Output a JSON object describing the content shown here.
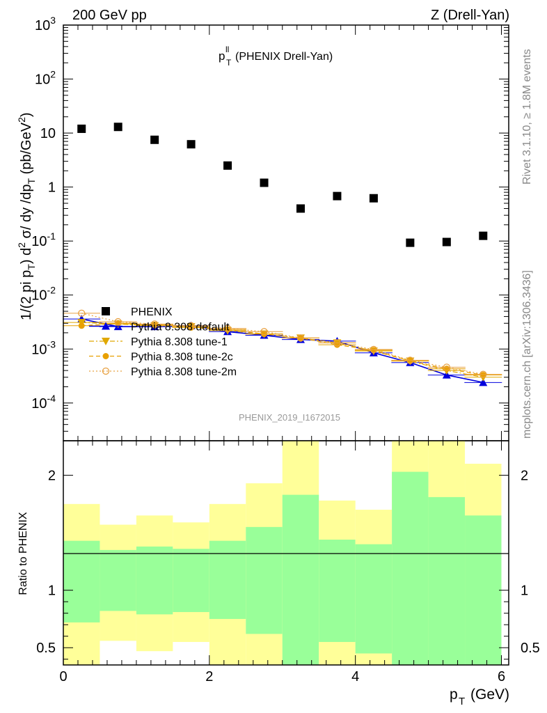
{
  "header": {
    "left": "200 GeV pp",
    "right": "Z (Drell-Yan)"
  },
  "side_text": {
    "rivet": "Rivet 3.1.10, ≥ 1.8M events",
    "mcplots": "mcplots.cern.ch [arXiv:1306.3436]"
  },
  "colors": {
    "data": "#000000",
    "default": "#0000dd",
    "tune1": "#e0a800",
    "tune2c": "#e8a000",
    "tune2m": "#e8a040",
    "band_inner": "#99ff99",
    "band_outer": "#ffff99"
  },
  "chart_data": [
    {
      "type": "scatter",
      "title": "p_T^ll (PHENIX Drell-Yan)",
      "title_main": "p",
      "title_sup": "ll",
      "title_sub": "T",
      "title_rest": "(PHENIX Drell-Yan)",
      "ylabel": "1/(2 pi p_T) d^2 σ/ dy /dp_T (pb/GeV^2)",
      "yscale": "log",
      "ylim": [
        2e-05,
        1000
      ],
      "xlim": [
        0,
        6.1
      ],
      "analysis_id": "PHENIX_2019_I1672015",
      "yticks": [
        {
          "value": 1000,
          "label_base": "10",
          "label_exp": "3"
        },
        {
          "value": 100,
          "label_base": "10",
          "label_exp": "2"
        },
        {
          "value": 10,
          "label_base": "10",
          "label_exp": ""
        },
        {
          "value": 1,
          "label_base": "1",
          "label_exp": ""
        },
        {
          "value": 0.1,
          "label_base": "10",
          "label_exp": "-1"
        },
        {
          "value": 0.01,
          "label_base": "10",
          "label_exp": "-2"
        },
        {
          "value": 0.001,
          "label_base": "10",
          "label_exp": "-3"
        },
        {
          "value": 0.0001,
          "label_base": "10",
          "label_exp": "-4"
        }
      ],
      "x": [
        0.25,
        0.75,
        1.25,
        1.75,
        2.25,
        2.75,
        3.25,
        3.75,
        4.25,
        4.75,
        5.25,
        5.75
      ],
      "series": [
        {
          "name": "PHENIX",
          "key": "data",
          "marker": "square",
          "values": [
            12,
            13,
            7.5,
            6.2,
            2.5,
            1.2,
            0.4,
            0.68,
            0.62,
            0.093,
            0.096,
            0.125
          ]
        },
        {
          "name": "Pythia 8.308 default",
          "key": "default",
          "marker": "triangle-up",
          "line": "solid",
          "values": [
            0.0036,
            0.0026,
            0.0026,
            0.0027,
            0.0021,
            0.0018,
            0.0015,
            0.0014,
            0.00085,
            0.00056,
            0.00033,
            0.00024
          ]
        },
        {
          "name": "Pythia 8.308 tune-1",
          "key": "tune1",
          "marker": "triangle-down",
          "line": "dashdot",
          "values": [
            0.0031,
            0.0029,
            0.0027,
            0.0026,
            0.0022,
            0.0019,
            0.0016,
            0.0013,
            0.00092,
            0.0006,
            0.0004,
            0.0003
          ]
        },
        {
          "name": "Pythia 8.308 tune-2c",
          "key": "tune2c",
          "marker": "circle",
          "line": "dashed",
          "values": [
            0.0027,
            0.003,
            0.0028,
            0.0025,
            0.0023,
            0.0019,
            0.0016,
            0.0012,
            0.00095,
            0.0006,
            0.00043,
            0.00033
          ]
        },
        {
          "name": "Pythia 8.308 tune-2m",
          "key": "tune2m",
          "marker": "open-circle",
          "line": "dotted",
          "values": [
            0.0046,
            0.0032,
            0.0029,
            0.0027,
            0.0024,
            0.0021,
            0.0016,
            0.0013,
            0.00098,
            0.00062,
            0.00046,
            0.00034
          ]
        }
      ],
      "legend_placement": "lower-left"
    },
    {
      "type": "area",
      "ylabel": "Ratio to PHENIX",
      "xlabel": "p_T (GeV)",
      "xlabel_main": "p",
      "xlabel_sub": "T",
      "xlabel_rest": "(GeV)",
      "xlim": [
        0,
        6.1
      ],
      "ylim": [
        0.35,
        2.3
      ],
      "reference_line": 1,
      "xticks": [
        0,
        2,
        4,
        6
      ],
      "yticks": [
        0.5,
        1,
        2
      ],
      "bins": [
        [
          0,
          0.5
        ],
        [
          0.5,
          1
        ],
        [
          1,
          1.5
        ],
        [
          1.5,
          2
        ],
        [
          2,
          2.5
        ],
        [
          2.5,
          3
        ],
        [
          3,
          3.5
        ],
        [
          3.5,
          4
        ],
        [
          4,
          4.5
        ],
        [
          4.5,
          5
        ],
        [
          5,
          5.5
        ],
        [
          5.5,
          6
        ]
      ],
      "inner_band": {
        "low": [
          0.72,
          0.82,
          0.79,
          0.81,
          0.75,
          0.62,
          0.35,
          0.55,
          0.45,
          0.35,
          0.35,
          0.35
        ],
        "high": [
          1.43,
          1.35,
          1.38,
          1.36,
          1.43,
          1.55,
          1.83,
          1.44,
          1.4,
          2.03,
          1.81,
          1.65
        ]
      },
      "outer_band": {
        "low": [
          0.35,
          0.56,
          0.47,
          0.55,
          0.35,
          0.35,
          0.35,
          0.35,
          0.35,
          0.35,
          0.35,
          0.42
        ],
        "high": [
          1.75,
          1.57,
          1.65,
          1.59,
          1.75,
          1.93,
          2.3,
          1.78,
          1.7,
          2.3,
          2.3,
          2.1
        ]
      }
    }
  ]
}
